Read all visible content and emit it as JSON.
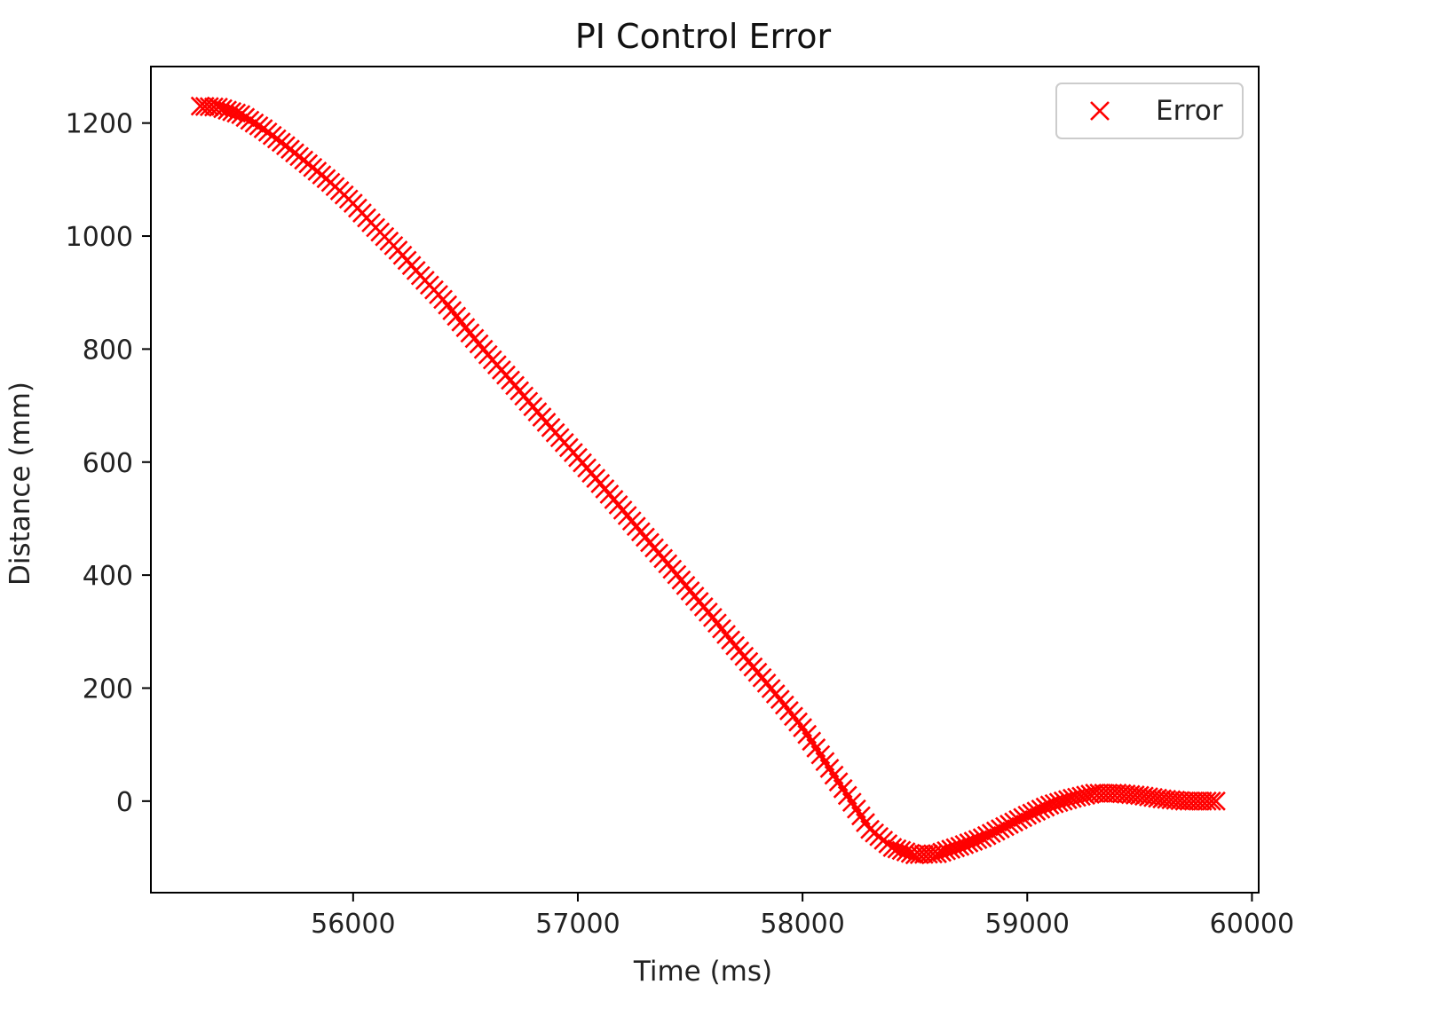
{
  "chart_data": {
    "type": "scatter",
    "title": "PI Control Error",
    "xlabel": "Time (ms)",
    "ylabel": "Distance (mm)",
    "xlim": [
      55100,
      60030
    ],
    "ylim": [
      -162,
      1300
    ],
    "xticks": [
      56000,
      57000,
      58000,
      59000,
      60000
    ],
    "yticks": [
      0,
      200,
      400,
      600,
      800,
      1000,
      1200
    ],
    "xtick_labels": [
      "56000",
      "57000",
      "58000",
      "59000",
      "60000"
    ],
    "ytick_labels": [
      "0",
      "200",
      "400",
      "600",
      "800",
      "1000",
      "1200"
    ],
    "grid": false,
    "legend": "upper-right",
    "series": [
      {
        "name": "Error",
        "marker": "x",
        "color": "#ff0000",
        "x_start": 55320,
        "x_step": 20,
        "keypoints": [
          [
            55320,
            1230
          ],
          [
            55400,
            1228
          ],
          [
            55500,
            1215
          ],
          [
            55600,
            1190
          ],
          [
            55700,
            1160
          ],
          [
            55800,
            1128
          ],
          [
            55900,
            1095
          ],
          [
            56000,
            1058
          ],
          [
            56100,
            1015
          ],
          [
            56200,
            975
          ],
          [
            56300,
            930
          ],
          [
            56400,
            888
          ],
          [
            56500,
            838
          ],
          [
            56600,
            790
          ],
          [
            56700,
            745
          ],
          [
            56800,
            698
          ],
          [
            56900,
            652
          ],
          [
            57000,
            608
          ],
          [
            57100,
            562
          ],
          [
            57200,
            515
          ],
          [
            57300,
            467
          ],
          [
            57400,
            420
          ],
          [
            57500,
            372
          ],
          [
            57600,
            325
          ],
          [
            57700,
            275
          ],
          [
            57800,
            228
          ],
          [
            57900,
            180
          ],
          [
            58000,
            130
          ],
          [
            58100,
            70
          ],
          [
            58200,
            10
          ],
          [
            58300,
            -50
          ],
          [
            58400,
            -82
          ],
          [
            58500,
            -95
          ],
          [
            58600,
            -93
          ],
          [
            58700,
            -80
          ],
          [
            58800,
            -65
          ],
          [
            58900,
            -45
          ],
          [
            59000,
            -25
          ],
          [
            59100,
            -7
          ],
          [
            59200,
            5
          ],
          [
            59300,
            14
          ],
          [
            59400,
            14
          ],
          [
            59500,
            10
          ],
          [
            59600,
            4
          ],
          [
            59700,
            0
          ],
          [
            59850,
            0
          ]
        ]
      }
    ]
  }
}
